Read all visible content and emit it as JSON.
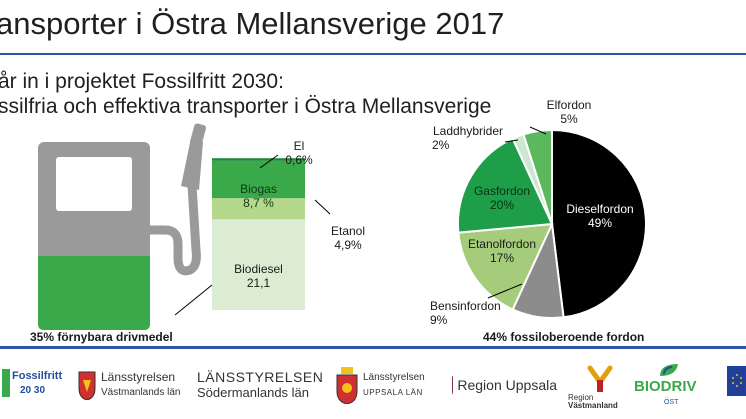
{
  "header": {
    "title": "ansporter i Östra Mellansverige 2017",
    "intro_line1": "år in i projektet Fossilfritt 2030:",
    "intro_line2": "ssilfria och effektiva transporter i Östra Mellansverige"
  },
  "colors": {
    "accent_blue": "#2f56a6",
    "pump_gray": "#9a9a9a",
    "pump_green": "#3aa94a"
  },
  "chart_data": [
    {
      "type": "bar",
      "stacked": true,
      "categories": [
        "Drivmedel"
      ],
      "series": [
        {
          "name": "Biodiesel",
          "values": [
            21.1
          ],
          "label_lines": [
            "Biodiesel",
            "21,1"
          ],
          "color": "#dcecd2"
        },
        {
          "name": "Etanol",
          "values": [
            4.9
          ],
          "label_lines": [
            "Etanol",
            "4,9%"
          ],
          "color": "#b5d88c"
        },
        {
          "name": "Biogas",
          "values": [
            8.7
          ],
          "label_lines": [
            "Biogas",
            "8,7 %"
          ],
          "color": "#3aa94a"
        },
        {
          "name": "El",
          "values": [
            0.6
          ],
          "label_lines": [
            "El",
            "0,6%"
          ],
          "color": "#1e8a36"
        }
      ],
      "caption": "35% förnybara drivmedel"
    },
    {
      "type": "pie",
      "slices": [
        {
          "name": "Dieselfordon",
          "value": 49,
          "value_label": "49%",
          "color": "#000000"
        },
        {
          "name": "Bensinfordon",
          "value": 9,
          "value_label": "9%",
          "color": "#8c8c8c"
        },
        {
          "name": "Etanolfordon",
          "value": 17,
          "value_label": "17%",
          "color": "#a5cc7a"
        },
        {
          "name": "Gasfordon",
          "value": 20,
          "value_label": "20%",
          "color": "#1f9e4a"
        },
        {
          "name": "Laddhybrider",
          "value": 2,
          "value_label": "2%",
          "color": "#cde6cf"
        },
        {
          "name": "Elfordon",
          "value": 5,
          "value_label": "5%",
          "color": "#5cb85c"
        }
      ],
      "caption": "44% fossiloberoende fordon"
    }
  ],
  "footer": {
    "logos": [
      {
        "name": "Fossilfritt 2030",
        "line1": "Fossilfritt",
        "line2": "20 30"
      },
      {
        "name": "Länsstyrelsen Västmanlands län",
        "line1": "Länsstyrelsen",
        "line2": "Västmanlands län"
      },
      {
        "name": "Länsstyrelsen Södermanlands län",
        "line1": "LÄNSSTYRELSEN",
        "line2": "Södermanlands län"
      },
      {
        "name": "Länsstyrelsen Uppsala län",
        "line1": "Länsstyrelsen",
        "line2": "UPPSALA LÄN"
      },
      {
        "name": "Region Uppsala",
        "line1": "Region Uppsala"
      },
      {
        "name": "Region Västmanland",
        "line1": "Region",
        "line2": "Västmanland"
      },
      {
        "name": "Biodriv Öst",
        "line1": "BIODRIV",
        "line2": "ÖST"
      }
    ]
  }
}
